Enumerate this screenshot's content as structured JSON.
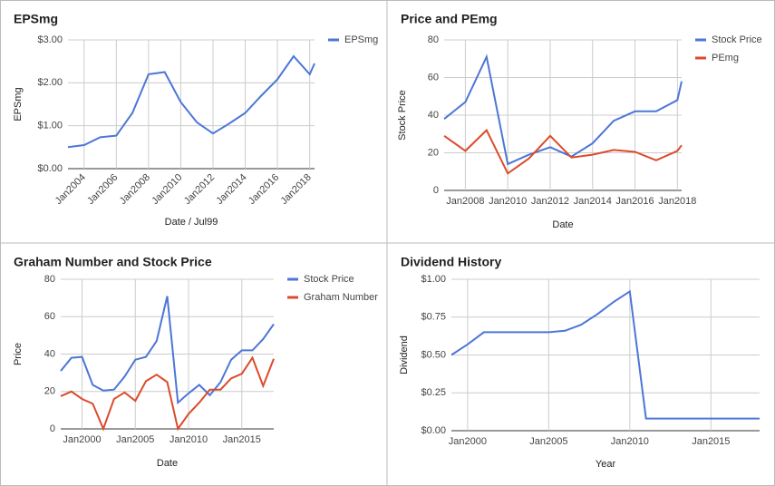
{
  "chart_data": [
    {
      "type": "line",
      "title": "EPSmg",
      "x_label": "Date / Jul99",
      "y_label": "EPSmg",
      "legend": "right",
      "grid": true,
      "rotate_x_labels": true,
      "x": [
        2003,
        2004,
        2005,
        2006,
        2007,
        2008,
        2009,
        2010,
        2011,
        2012,
        2013,
        2014,
        2015,
        2016,
        2017,
        2018,
        2018.3
      ],
      "series": [
        {
          "name": "EPSmg",
          "color": "#4d76d6",
          "values": [
            0.5,
            0.55,
            0.73,
            0.77,
            1.3,
            2.2,
            2.25,
            1.55,
            1.08,
            0.82,
            1.05,
            1.3,
            1.7,
            2.08,
            2.62,
            2.2,
            2.45
          ]
        }
      ],
      "xlim": [
        2003,
        2018.3
      ],
      "xticks": [
        {
          "value": 2004,
          "label": "Jan2004"
        },
        {
          "value": 2006,
          "label": "Jan2006"
        },
        {
          "value": 2008,
          "label": "Jan2008"
        },
        {
          "value": 2010,
          "label": "Jan2010"
        },
        {
          "value": 2012,
          "label": "Jan2012"
        },
        {
          "value": 2014,
          "label": "Jan2014"
        },
        {
          "value": 2016,
          "label": "Jan2016"
        },
        {
          "value": 2018,
          "label": "Jan2018"
        }
      ],
      "ylim": [
        0,
        3
      ],
      "yticks": [
        {
          "value": 0,
          "label": "$0.00"
        },
        {
          "value": 1,
          "label": "$1.00"
        },
        {
          "value": 2,
          "label": "$2.00"
        },
        {
          "value": 3,
          "label": "$3.00"
        }
      ]
    },
    {
      "type": "line",
      "title": "Price and PEmg",
      "x_label": "Date",
      "y_label": "Stock Price",
      "legend": "right",
      "grid": true,
      "x": [
        2007,
        2008,
        2009,
        2010,
        2011,
        2012,
        2013,
        2014,
        2015,
        2016,
        2017,
        2018,
        2018.2
      ],
      "series": [
        {
          "name": "Stock Price",
          "color": "#4d76d6",
          "values": [
            38,
            47,
            71,
            14,
            19,
            23,
            18,
            25,
            37,
            42,
            42,
            48,
            58
          ]
        },
        {
          "name": "PEmg",
          "color": "#dc4b2b",
          "values": [
            29,
            21,
            32,
            9,
            17,
            29,
            17.5,
            19,
            21.5,
            20.5,
            16,
            21,
            24
          ]
        }
      ],
      "xlim": [
        2007,
        2018.2
      ],
      "xticks": [
        {
          "value": 2008,
          "label": "Jan2008"
        },
        {
          "value": 2010,
          "label": "Jan2010"
        },
        {
          "value": 2012,
          "label": "Jan2012"
        },
        {
          "value": 2014,
          "label": "Jan2014"
        },
        {
          "value": 2016,
          "label": "Jan2016"
        },
        {
          "value": 2018,
          "label": "Jan2018"
        }
      ],
      "ylim": [
        0,
        80
      ],
      "yticks": [
        0,
        20,
        40,
        60,
        80
      ]
    },
    {
      "type": "line",
      "title": "Graham Number and Stock Price",
      "x_label": "Date",
      "y_label": "Price",
      "legend": "right",
      "grid": true,
      "x": [
        1998,
        1999,
        2000,
        2001,
        2002,
        2003,
        2004,
        2005,
        2006,
        2007,
        2008,
        2009,
        2010,
        2011,
        2012,
        2013,
        2014,
        2015,
        2016,
        2017,
        2018
      ],
      "series": [
        {
          "name": "Stock Price",
          "color": "#4d76d6",
          "values": [
            31,
            38,
            38.5,
            23.5,
            20.5,
            21,
            28,
            37,
            38.5,
            47,
            71,
            14,
            19,
            23.5,
            18,
            25,
            37,
            42,
            42,
            48,
            56
          ]
        },
        {
          "name": "Graham Number",
          "color": "#dc4b2b",
          "values": [
            17.5,
            20,
            16,
            13.5,
            0,
            16,
            19.5,
            15,
            25.5,
            29,
            25,
            0,
            8,
            14,
            21,
            21,
            27,
            29.5,
            38,
            23,
            37.5
          ]
        }
      ],
      "xlim": [
        1998,
        2018
      ],
      "xticks": [
        {
          "value": 2000,
          "label": "Jan2000"
        },
        {
          "value": 2005,
          "label": "Jan2005"
        },
        {
          "value": 2010,
          "label": "Jan2010"
        },
        {
          "value": 2015,
          "label": "Jan2015"
        }
      ],
      "ylim": [
        0,
        80
      ],
      "yticks": [
        0,
        20,
        40,
        60,
        80
      ]
    },
    {
      "type": "line",
      "title": "Dividend History",
      "x_label": "Year",
      "y_label": "Dividend",
      "legend": "none",
      "grid": true,
      "x": [
        1999,
        2000,
        2001,
        2005,
        2006,
        2007,
        2008,
        2009,
        2010,
        2011,
        2018
      ],
      "series": [
        {
          "name": "Dividend",
          "color": "#4d76d6",
          "values": [
            0.5,
            0.57,
            0.65,
            0.65,
            0.66,
            0.7,
            0.77,
            0.85,
            0.92,
            0.08,
            0.08
          ]
        }
      ],
      "xlim": [
        1999,
        2018
      ],
      "xticks": [
        {
          "value": 2000,
          "label": "Jan2000"
        },
        {
          "value": 2005,
          "label": "Jan2005"
        },
        {
          "value": 2010,
          "label": "Jan2010"
        },
        {
          "value": 2015,
          "label": "Jan2015"
        }
      ],
      "ylim": [
        0,
        1
      ],
      "yticks": [
        {
          "value": 0,
          "label": "$0.00"
        },
        {
          "value": 0.25,
          "label": "$0.25"
        },
        {
          "value": 0.5,
          "label": "$0.50"
        },
        {
          "value": 0.75,
          "label": "$0.75"
        },
        {
          "value": 1,
          "label": "$1.00"
        }
      ]
    }
  ]
}
